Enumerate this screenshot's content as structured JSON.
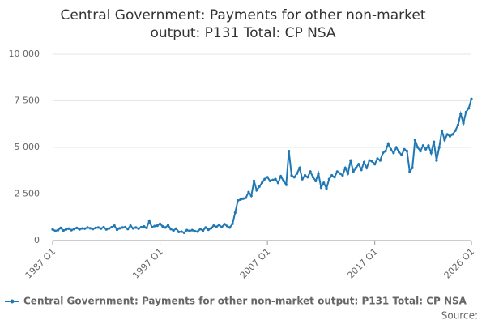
{
  "chart_data": {
    "type": "line",
    "title": "Central Government: Payments for other non-market output: P131 Total: CP NSA",
    "categories": [
      "1987 Q1",
      null,
      null,
      null,
      null,
      null,
      null,
      null,
      null,
      null,
      null,
      null,
      null,
      null,
      null,
      null,
      null,
      null,
      null,
      null,
      null,
      null,
      null,
      null,
      null,
      null,
      null,
      null,
      null,
      null,
      null,
      null,
      null,
      null,
      null,
      null,
      null,
      null,
      null,
      null,
      "1997 Q1",
      null,
      null,
      null,
      null,
      null,
      null,
      null,
      null,
      null,
      null,
      null,
      null,
      null,
      null,
      null,
      null,
      null,
      null,
      null,
      null,
      null,
      null,
      null,
      null,
      null,
      null,
      null,
      null,
      null,
      null,
      null,
      null,
      null,
      null,
      null,
      null,
      null,
      null,
      null,
      "2007 Q1",
      null,
      null,
      null,
      null,
      null,
      null,
      null,
      null,
      null,
      null,
      null,
      null,
      null,
      null,
      null,
      null,
      null,
      null,
      null,
      null,
      null,
      null,
      null,
      null,
      null,
      null,
      null,
      null,
      null,
      null,
      null,
      null,
      null,
      null,
      null,
      null,
      null,
      null,
      null,
      "2017 Q1",
      null,
      null,
      null,
      null,
      null,
      null,
      null,
      null,
      null,
      null,
      null,
      null,
      null,
      null,
      null,
      null,
      null,
      null,
      null,
      null,
      null,
      null,
      null,
      null,
      null,
      null,
      null,
      null,
      null,
      null,
      null,
      null,
      null,
      null,
      null,
      "2026 Q1"
    ],
    "series": [
      {
        "name": "Central Government: Payments for other non-market output: P131 Total: CP NSA",
        "color": "#1f78b4",
        "values": [
          600,
          520,
          560,
          680,
          540,
          600,
          640,
          560,
          620,
          680,
          600,
          650,
          640,
          700,
          660,
          620,
          680,
          700,
          640,
          720,
          600,
          650,
          720,
          800,
          580,
          660,
          700,
          720,
          620,
          800,
          650,
          700,
          640,
          720,
          760,
          680,
          1050,
          720,
          780,
          800,
          900,
          760,
          700,
          820,
          620,
          540,
          640,
          460,
          480,
          420,
          560,
          520,
          560,
          500,
          480,
          620,
          540,
          700,
          580,
          660,
          800,
          740,
          840,
          720,
          880,
          780,
          700,
          900,
          1500,
          2150,
          2200,
          2250,
          2300,
          2600,
          2400,
          3200,
          2700,
          2900,
          3100,
          3300,
          3400,
          3200,
          3250,
          3300,
          3100,
          3450,
          3200,
          3000,
          4800,
          3500,
          3400,
          3600,
          3900,
          3300,
          3500,
          3400,
          3700,
          3400,
          3200,
          3600,
          2850,
          3100,
          2800,
          3300,
          3500,
          3400,
          3700,
          3600,
          3500,
          3900,
          3600,
          4300,
          3700,
          3900,
          4100,
          3800,
          4200,
          3900,
          4300,
          4250,
          4100,
          4400,
          4300,
          4700,
          4800,
          5200,
          4900,
          4700,
          5000,
          4750,
          4600,
          4900,
          4800,
          3700,
          3900,
          5400,
          5000,
          4800,
          5100,
          4900,
          5100,
          4700,
          5300,
          4300,
          5000,
          5900,
          5400,
          5700,
          5600,
          5700,
          5900,
          6200,
          6800,
          6300,
          6900,
          7100,
          7600
        ]
      }
    ],
    "ylim": [
      0,
      10000
    ],
    "yticks": [
      0,
      {
        "value": 2500,
        "label": "2 500"
      },
      {
        "value": 5000,
        "label": "5 000"
      },
      {
        "value": 7500,
        "label": "7 500"
      },
      {
        "value": 10000,
        "label": "10 000"
      }
    ],
    "grid": true,
    "source": "Source:"
  }
}
